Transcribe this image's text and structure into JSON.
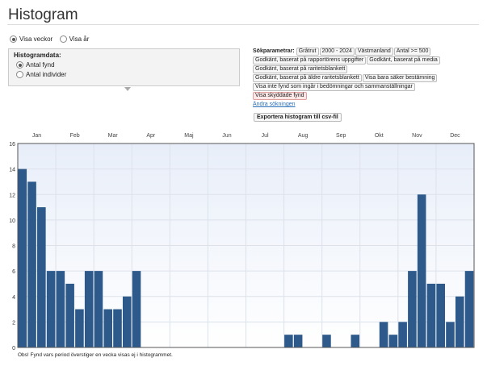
{
  "page": {
    "title": "Histogram"
  },
  "view": {
    "weeks_label": "Visa veckor",
    "years_label": "Visa år",
    "selected": "weeks"
  },
  "histogram_data": {
    "heading": "Histogramdata:",
    "options": [
      {
        "label": "Antal fynd",
        "selected": true
      },
      {
        "label": "Antal individer",
        "selected": false
      }
    ]
  },
  "search": {
    "label": "Sökparametrar:",
    "tags": [
      "Gråtrut",
      "2000 - 2024",
      "Västmanland",
      "Antal >= 500",
      "Godkänt, baserat på rapportörens uppgifter",
      "Godkänt, baserat på media",
      "Godkänt, baserat på raritetsblankett",
      "Godkänt, baserat på äldre raritetsblankett",
      "Visa bara säker bestämning",
      "Visa inte fynd som ingår i bedömningar och sammanställningar",
      "Visa skyddade fynd"
    ],
    "change_link": "Ändra sökningen"
  },
  "export_label": "Exportera histogram till csv-fil",
  "note": "Obs! Fynd vars period överstiger en vecka visas ej i histogrammet.",
  "colors": {
    "bar": "#2d5a8a"
  },
  "chart_data": {
    "type": "bar",
    "title": "",
    "xlabel": "",
    "ylabel": "",
    "ylim": [
      0,
      16
    ],
    "yticks": [
      0,
      2,
      4,
      6,
      8,
      10,
      12,
      14,
      16
    ],
    "months": [
      "Jan",
      "Feb",
      "Mar",
      "Apr",
      "Maj",
      "Jun",
      "Jul",
      "Aug",
      "Sep",
      "Okt",
      "Nov",
      "Dec"
    ],
    "bins_per_month": 4,
    "values": [
      14,
      13,
      11,
      6,
      6,
      5,
      3,
      6,
      6,
      3,
      3,
      4,
      6,
      0,
      0,
      0,
      0,
      0,
      0,
      0,
      0,
      0,
      0,
      0,
      0,
      0,
      0,
      0,
      1,
      1,
      0,
      0,
      1,
      0,
      0,
      1,
      0,
      0,
      2,
      1,
      2,
      6,
      12,
      5,
      5,
      2,
      4,
      6
    ]
  }
}
